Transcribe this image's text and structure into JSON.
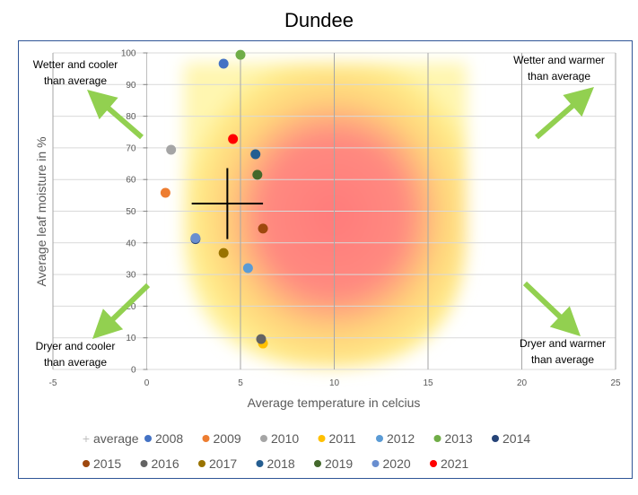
{
  "chart_data": {
    "type": "scatter",
    "title": "Dundee",
    "xlabel": "Average temperature in celcius",
    "ylabel": "Average leaf moisture in %",
    "xlim": [
      -5,
      25
    ],
    "ylim": [
      0,
      100
    ],
    "xticks": [
      "-5",
      "0",
      "5",
      "10",
      "15",
      "20",
      "25"
    ],
    "yticks": [
      "0",
      "10",
      "20",
      "30",
      "40",
      "50",
      "60",
      "70",
      "80",
      "90",
      "100"
    ],
    "grid": true,
    "legend_position": "bottom",
    "average": {
      "name": "average",
      "x": 4.3,
      "y": 52.4,
      "x_error": 1.9,
      "y_error": 11.2
    },
    "series": [
      {
        "name": "2008",
        "x": 4.1,
        "y": 96.6,
        "color": "#4472C4"
      },
      {
        "name": "2009",
        "x": 1.0,
        "y": 55.8,
        "color": "#ED7D31"
      },
      {
        "name": "2010",
        "x": 1.3,
        "y": 69.4,
        "color": "#A5A5A5"
      },
      {
        "name": "2011",
        "x": 6.2,
        "y": 8.2,
        "color": "#FFC000"
      },
      {
        "name": "2012",
        "x": 5.4,
        "y": 32.0,
        "color": "#5B9BD5"
      },
      {
        "name": "2013",
        "x": 5.0,
        "y": 99.4,
        "color": "#70AD47"
      },
      {
        "name": "2014",
        "x": 2.6,
        "y": 41.2,
        "color": "#264478"
      },
      {
        "name": "2015",
        "x": 6.2,
        "y": 44.5,
        "color": "#9E480E"
      },
      {
        "name": "2016",
        "x": 6.1,
        "y": 9.6,
        "color": "#636363"
      },
      {
        "name": "2017",
        "x": 4.1,
        "y": 36.8,
        "color": "#997300"
      },
      {
        "name": "2018",
        "x": 5.8,
        "y": 68.0,
        "color": "#255E91"
      },
      {
        "name": "2019",
        "x": 5.9,
        "y": 61.5,
        "color": "#43682B"
      },
      {
        "name": "2020",
        "x": 2.6,
        "y": 41.5,
        "color": "#698ED0"
      },
      {
        "name": "2021",
        "x": 4.6,
        "y": 72.8,
        "color": "#FF0000"
      }
    ],
    "annotations": {
      "top_left": [
        "Wetter and cooler",
        "than average"
      ],
      "top_right": [
        "Wetter and warmer",
        "than average"
      ],
      "bottom_left": [
        "Dryer and cooler",
        "than average"
      ],
      "bottom_right": [
        "Dryer and warmer",
        "than average"
      ]
    },
    "arrow_color": "#92D050"
  }
}
